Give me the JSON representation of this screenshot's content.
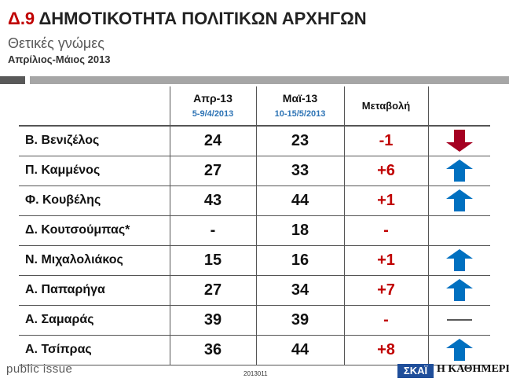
{
  "header": {
    "code": "Δ.9",
    "title": "ΔΗΜΟΤΙΚΟΤΗΤΑ ΠΟΛΙΤΙΚΩΝ ΑΡΧΗΓΩΝ",
    "subtitle": "Θετικές γνώμες",
    "period": "Απρίλιος-Μάιος 2013"
  },
  "colors": {
    "accent": "#c00000",
    "up_arrow": "#0070c0",
    "down_arrow": "#a50021",
    "date_blue": "#2e74b5"
  },
  "chart_data": {
    "type": "table",
    "columns": [
      {
        "label": "Απρ-13",
        "sub": "5-9/4/2013"
      },
      {
        "label": "Μαϊ-13",
        "sub": "10-15/5/2013"
      },
      {
        "label": "Μεταβολή",
        "sub": ""
      }
    ],
    "rows": [
      {
        "name": "Β. Βενιζέλος",
        "apr": "24",
        "may": "23",
        "change": "-1",
        "trend": "down"
      },
      {
        "name": "Π. Καμμένος",
        "apr": "27",
        "may": "33",
        "change": "+6",
        "trend": "up"
      },
      {
        "name": "Φ. Κουβέλης",
        "apr": "43",
        "may": "44",
        "change": "+1",
        "trend": "up"
      },
      {
        "name": "Δ. Κουτσούμπας*",
        "apr": "-",
        "may": "18",
        "change": "-",
        "trend": "none"
      },
      {
        "name": "Ν. Μιχαλολιάκος",
        "apr": "15",
        "may": "16",
        "change": "+1",
        "trend": "up"
      },
      {
        "name": "Α. Παπαρήγα",
        "apr": "27",
        "may": "34",
        "change": "+7",
        "trend": "up"
      },
      {
        "name": "Α. Σαμαράς",
        "apr": "39",
        "may": "39",
        "change": "-",
        "trend": "flat"
      },
      {
        "name": "Α. Τσίπρας",
        "apr": "36",
        "may": "44",
        "change": "+8",
        "trend": "up"
      }
    ]
  },
  "footer": {
    "brand": "public issue",
    "code": "2013011",
    "logo_skai": "ΣΚΑΪ",
    "logo_kathimerini": "Η ΚΑΘΗΜΕΡΙΝΗ"
  }
}
